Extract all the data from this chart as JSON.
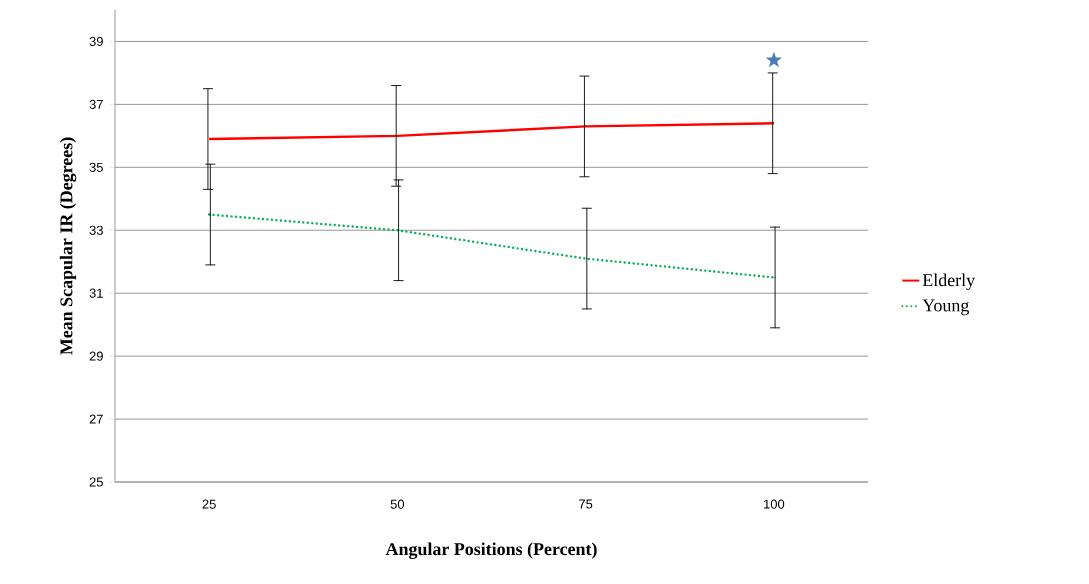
{
  "chart_data": {
    "type": "line",
    "xlabel": "Angular Positions (Percent)",
    "ylabel": "Mean Scapular IR (Degrees)",
    "categories": [
      "25",
      "50",
      "75",
      "100"
    ],
    "series": [
      {
        "name": "Elderly",
        "color": "#ff0000",
        "line_style": "solid",
        "values": [
          35.9,
          36.0,
          36.3,
          36.4
        ],
        "errors": [
          1.6,
          1.6,
          1.6,
          1.6
        ]
      },
      {
        "name": "Young",
        "color": "#00b050",
        "line_style": "dotted",
        "values": [
          33.5,
          33.0,
          32.1,
          31.5
        ],
        "errors": [
          1.6,
          1.6,
          1.6,
          1.6
        ]
      },
      {
        "type": "scatter",
        "color": "#4a7ab5",
        "marker": "star",
        "x": [
          "100"
        ],
        "values": [
          38.4
        ]
      }
    ],
    "ylim": [
      25,
      40
    ],
    "yticks": [
      25,
      27,
      29,
      31,
      33,
      35,
      37,
      39
    ],
    "grid": "y",
    "legend": "right"
  }
}
